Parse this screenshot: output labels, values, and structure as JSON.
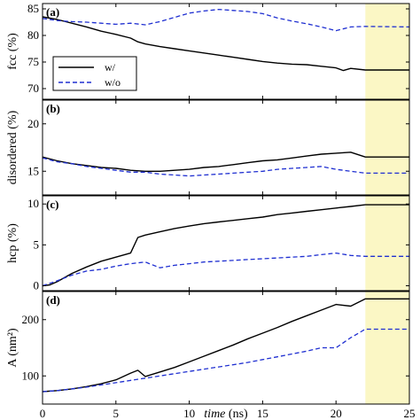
{
  "chart_data": [
    {
      "panel": "(a)",
      "type": "line",
      "ylabel": "fcc (%)",
      "ylim": [
        68,
        86
      ],
      "yticks": [
        70,
        75,
        80,
        85
      ],
      "xlim": [
        0,
        25
      ],
      "shaded_region": [
        22,
        25
      ],
      "legend": {
        "placement": "middle-left",
        "entries": [
          "w/",
          "w/o"
        ]
      },
      "series": [
        {
          "name": "w/",
          "color": "#000000",
          "style": "solid",
          "x": [
            0,
            1,
            2,
            3,
            4,
            5,
            6,
            6.5,
            7,
            8,
            9,
            10,
            11,
            12,
            13,
            14,
            15,
            16,
            17,
            18,
            19,
            20,
            20.5,
            21,
            22,
            25
          ],
          "y": [
            83.5,
            83.0,
            82.3,
            81.6,
            80.8,
            80.2,
            79.5,
            78.8,
            78.4,
            77.9,
            77.5,
            77.1,
            76.7,
            76.3,
            75.9,
            75.5,
            75.1,
            74.8,
            74.6,
            74.5,
            74.2,
            73.9,
            73.4,
            73.8,
            73.5,
            73.5
          ]
        },
        {
          "name": "w/o",
          "color": "#1f2fd1",
          "style": "dashed",
          "x": [
            0,
            1,
            2,
            3,
            4,
            5,
            6,
            7,
            8,
            9,
            10,
            11,
            12,
            13,
            14,
            15,
            16,
            17,
            18,
            19,
            20,
            21,
            22,
            25
          ],
          "y": [
            83.2,
            82.8,
            82.6,
            82.5,
            82.3,
            82.1,
            82.3,
            82.0,
            82.6,
            83.4,
            84.2,
            84.6,
            84.9,
            84.7,
            84.5,
            84.1,
            83.3,
            82.7,
            82.2,
            81.6,
            80.9,
            81.6,
            81.7,
            81.6
          ]
        }
      ]
    },
    {
      "panel": "(b)",
      "type": "line",
      "ylabel": "disordered (%)",
      "ylim": [
        12.5,
        22.5
      ],
      "yticks": [
        15,
        20
      ],
      "xlim": [
        0,
        25
      ],
      "series": [
        {
          "name": "w/",
          "color": "#000000",
          "style": "solid",
          "x": [
            0,
            1,
            2,
            3,
            4,
            5,
            6,
            7,
            8,
            9,
            10,
            11,
            12,
            13,
            14,
            15,
            16,
            17,
            18,
            19,
            20,
            21,
            22,
            25
          ],
          "y": [
            16.5,
            16.1,
            15.8,
            15.6,
            15.4,
            15.3,
            15.1,
            15.0,
            15.0,
            15.1,
            15.2,
            15.4,
            15.5,
            15.7,
            15.9,
            16.1,
            16.2,
            16.4,
            16.6,
            16.8,
            16.9,
            17.0,
            16.5,
            16.5
          ]
        },
        {
          "name": "w/o",
          "color": "#1f2fd1",
          "style": "dashed",
          "x": [
            0,
            1,
            2,
            3,
            4,
            5,
            6,
            7,
            8,
            9,
            10,
            11,
            12,
            13,
            14,
            15,
            16,
            17,
            18,
            19,
            20,
            21,
            22,
            25
          ],
          "y": [
            16.4,
            16.0,
            15.8,
            15.5,
            15.3,
            15.1,
            14.9,
            14.9,
            14.7,
            14.6,
            14.5,
            14.6,
            14.7,
            14.8,
            14.9,
            15.0,
            15.2,
            15.3,
            15.4,
            15.5,
            15.2,
            15.0,
            14.8,
            14.8
          ]
        }
      ]
    },
    {
      "panel": "(c)",
      "type": "line",
      "ylabel": "hcp (%)",
      "ylim": [
        -0.6,
        11
      ],
      "yticks": [
        0,
        5,
        10
      ],
      "xlim": [
        0,
        25
      ],
      "series": [
        {
          "name": "w/",
          "color": "#000000",
          "style": "solid",
          "x": [
            0,
            0.5,
            1,
            2,
            3,
            4,
            5,
            6,
            6.5,
            7,
            8,
            9,
            10,
            11,
            12,
            13,
            14,
            15,
            16,
            17,
            18,
            19,
            20,
            21,
            22,
            25
          ],
          "y": [
            0,
            0.1,
            0.5,
            1.5,
            2.3,
            3.0,
            3.5,
            4.0,
            5.9,
            6.2,
            6.6,
            7.0,
            7.3,
            7.6,
            7.8,
            8.0,
            8.2,
            8.4,
            8.7,
            8.9,
            9.1,
            9.3,
            9.5,
            9.7,
            9.9,
            9.9
          ]
        },
        {
          "name": "w/o",
          "color": "#1f2fd1",
          "style": "dashed",
          "x": [
            0,
            1,
            2,
            3,
            4,
            5,
            6,
            7,
            8,
            9,
            10,
            11,
            12,
            13,
            14,
            15,
            16,
            17,
            18,
            19,
            20,
            21,
            22,
            25
          ],
          "y": [
            0,
            0.6,
            1.3,
            1.8,
            2.0,
            2.4,
            2.7,
            2.9,
            2.2,
            2.5,
            2.7,
            2.9,
            3.0,
            3.1,
            3.2,
            3.3,
            3.4,
            3.5,
            3.6,
            3.8,
            4.0,
            3.7,
            3.6,
            3.6
          ]
        }
      ]
    },
    {
      "panel": "(d)",
      "type": "line",
      "ylabel": "A (nm²)",
      "ylim": [
        50,
        250
      ],
      "yticks": [
        100,
        200
      ],
      "xlim": [
        0,
        25
      ],
      "xlabel_italic": "time",
      "xlabel_unit": " (ns)",
      "xticks": [
        0,
        5,
        10,
        15,
        20,
        25
      ],
      "series": [
        {
          "name": "w/",
          "color": "#000000",
          "style": "solid",
          "x": [
            0,
            1,
            2,
            3,
            4,
            5,
            6,
            6.5,
            7,
            8,
            9,
            10,
            11,
            12,
            13,
            14,
            15,
            16,
            17,
            18,
            19,
            20,
            21,
            22,
            25
          ],
          "y": [
            72,
            74,
            77,
            81,
            86,
            93,
            105,
            110,
            99,
            107,
            115,
            125,
            135,
            145,
            155,
            166,
            176,
            186,
            197,
            207,
            217,
            227,
            224,
            237,
            237
          ]
        },
        {
          "name": "w/o",
          "color": "#1f2fd1",
          "style": "dashed",
          "x": [
            0,
            1,
            2,
            3,
            4,
            5,
            6,
            7,
            8,
            9,
            10,
            11,
            12,
            13,
            14,
            15,
            16,
            17,
            18,
            19,
            20,
            21,
            22,
            25
          ],
          "y": [
            72,
            74,
            77,
            80,
            84,
            88,
            92,
            96,
            100,
            104,
            108,
            112,
            116,
            120,
            124,
            129,
            134,
            139,
            144,
            150,
            150,
            168,
            183,
            183
          ]
        }
      ]
    }
  ]
}
